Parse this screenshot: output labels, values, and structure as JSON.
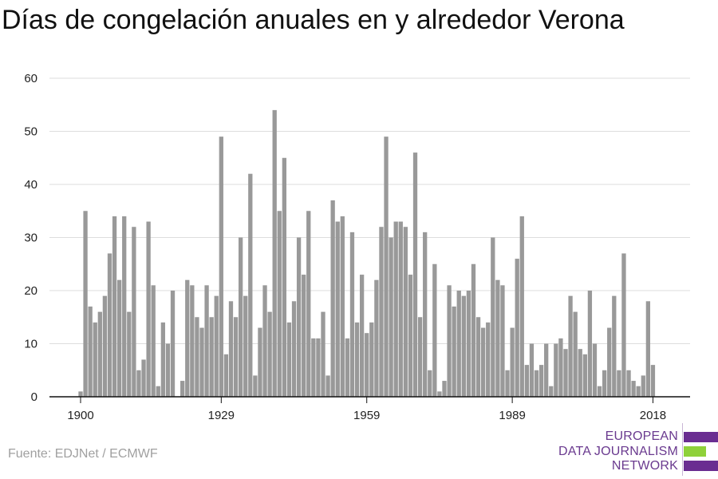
{
  "title": "Días de congelación anuales en y alrededor Verona",
  "source": "Fuente: EDJNet / ECMWF",
  "logo": {
    "lines": [
      "EUROPEAN",
      "DATA JOURNALISM",
      "NETWORK"
    ],
    "colors": [
      "#6a2d91",
      "#8fd13a",
      "#6a2d91"
    ]
  },
  "chart_data": {
    "type": "bar",
    "title": "Días de congelación anuales en y alrededor Verona",
    "xlabel": "",
    "ylabel": "",
    "ylim": [
      0,
      60
    ],
    "yticks": [
      0,
      10,
      20,
      30,
      40,
      50,
      60
    ],
    "xticks": [
      1900,
      1929,
      1959,
      1989,
      2018
    ],
    "bar_color": "#999999",
    "grid": true,
    "x": [
      1900,
      1901,
      1902,
      1903,
      1904,
      1905,
      1906,
      1907,
      1908,
      1909,
      1910,
      1911,
      1912,
      1913,
      1914,
      1915,
      1916,
      1917,
      1918,
      1919,
      1920,
      1921,
      1922,
      1923,
      1924,
      1925,
      1926,
      1927,
      1928,
      1929,
      1930,
      1931,
      1932,
      1933,
      1934,
      1935,
      1936,
      1937,
      1938,
      1939,
      1940,
      1941,
      1942,
      1943,
      1944,
      1945,
      1946,
      1947,
      1948,
      1949,
      1950,
      1951,
      1952,
      1953,
      1954,
      1955,
      1956,
      1957,
      1958,
      1959,
      1960,
      1961,
      1962,
      1963,
      1964,
      1965,
      1966,
      1967,
      1968,
      1969,
      1970,
      1971,
      1972,
      1973,
      1974,
      1975,
      1976,
      1977,
      1978,
      1979,
      1980,
      1981,
      1982,
      1983,
      1984,
      1985,
      1986,
      1987,
      1988,
      1989,
      1990,
      1991,
      1992,
      1993,
      1994,
      1995,
      1996,
      1997,
      1998,
      1999,
      2000,
      2001,
      2002,
      2003,
      2004,
      2005,
      2006,
      2007,
      2008,
      2009,
      2010,
      2011,
      2012,
      2013,
      2014,
      2015,
      2016,
      2017,
      2018,
      2019
    ],
    "values": [
      1,
      35,
      17,
      14,
      16,
      19,
      27,
      34,
      22,
      34,
      16,
      32,
      5,
      7,
      33,
      21,
      2,
      14,
      10,
      20,
      0,
      3,
      22,
      21,
      15,
      13,
      21,
      15,
      19,
      49,
      8,
      18,
      15,
      30,
      19,
      42,
      4,
      13,
      21,
      16,
      54,
      35,
      45,
      14,
      18,
      30,
      23,
      35,
      11,
      11,
      16,
      4,
      37,
      33,
      34,
      11,
      31,
      14,
      23,
      12,
      14,
      22,
      32,
      49,
      30,
      33,
      33,
      32,
      23,
      46,
      15,
      31,
      5,
      25,
      1,
      3,
      21,
      17,
      20,
      19,
      20,
      25,
      15,
      13,
      14,
      30,
      22,
      21,
      5,
      13,
      26,
      34,
      6,
      10,
      5,
      6,
      10,
      2,
      10,
      11,
      9,
      19,
      16,
      9,
      8,
      20,
      10,
      2,
      5,
      13,
      19,
      5,
      27,
      5,
      3,
      2,
      4,
      18,
      6,
      0
    ]
  }
}
